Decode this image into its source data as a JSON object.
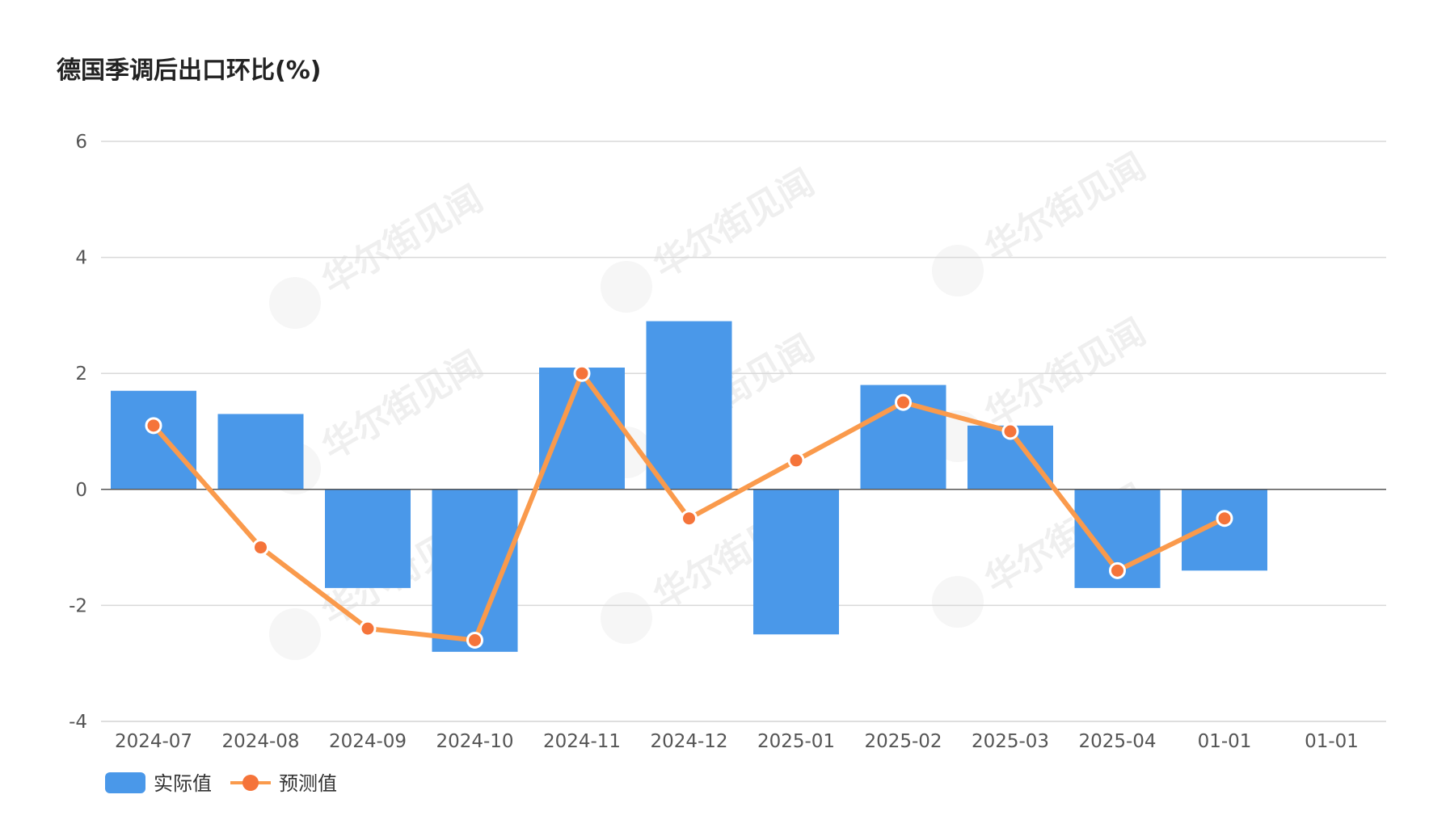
{
  "chart_data": {
    "type": "bar",
    "title": "德国季调后出口环比(%)",
    "categories": [
      "2024-07",
      "2024-08",
      "2024-09",
      "2024-10",
      "2024-11",
      "2024-12",
      "2025-01",
      "2025-02",
      "2025-03",
      "2025-04",
      "01-01",
      "01-01"
    ],
    "series": [
      {
        "name": "实际值",
        "type": "bar",
        "color": "#4a98e9",
        "values": [
          1.7,
          1.3,
          -1.7,
          -2.8,
          2.1,
          2.9,
          -2.5,
          1.8,
          1.1,
          -1.7,
          -1.4,
          null
        ]
      },
      {
        "name": "预测值",
        "type": "line",
        "color": "#fa9a4c",
        "marker_color": "#f5743a",
        "values": [
          1.1,
          -1.0,
          -2.4,
          -2.6,
          2.0,
          -0.5,
          0.5,
          1.5,
          1.0,
          -1.4,
          -0.5,
          null
        ]
      }
    ],
    "ylim": [
      -4,
      6
    ],
    "yticks": [
      6,
      4,
      2,
      0,
      -2,
      -4
    ],
    "grid": true,
    "legend_position": "bottom-left",
    "watermark": "华尔街见闻"
  }
}
